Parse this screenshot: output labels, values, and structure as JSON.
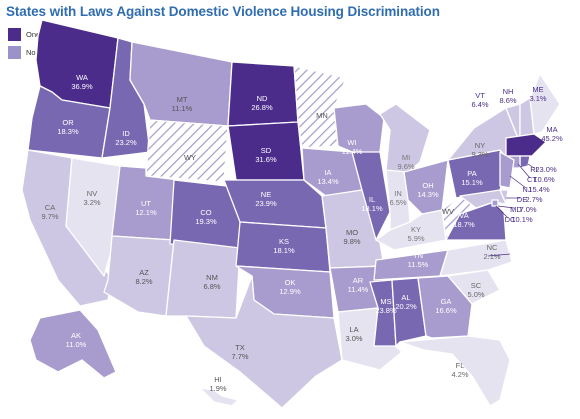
{
  "title": "States with Laws Against Domestic Violence Housing Discrimination",
  "colors": {
    "has_law": "#4b2c8a",
    "no_law": "#9b92c9",
    "very_light": "#e6e3f1",
    "light": "#cdc7e3",
    "mid": "#a79ccd",
    "dark": "#7868b2",
    "border": "#ffffff",
    "hatch": "#a39bc8"
  },
  "legend": [
    {
      "label": "One or more laws",
      "color": "#4b2c8a"
    },
    {
      "label": "No laws",
      "color": "#9b92c9"
    }
  ],
  "states": [
    {
      "id": "WA",
      "name": "WA",
      "value": "36.9%",
      "has_law": true
    },
    {
      "id": "OR",
      "name": "OR",
      "value": "18.3%"
    },
    {
      "id": "CA",
      "name": "CA",
      "value": "9.7%"
    },
    {
      "id": "NV",
      "name": "NV",
      "value": "3.2%"
    },
    {
      "id": "ID",
      "name": "ID",
      "value": "23.2%"
    },
    {
      "id": "MT",
      "name": "MT",
      "value": "11.1%"
    },
    {
      "id": "WY",
      "name": "WY",
      "value": "",
      "hatched": true
    },
    {
      "id": "UT",
      "name": "UT",
      "value": "12.1%"
    },
    {
      "id": "AZ",
      "name": "AZ",
      "value": "8.2%"
    },
    {
      "id": "CO",
      "name": "CO",
      "value": "19.3%"
    },
    {
      "id": "NM",
      "name": "NM",
      "value": "6.8%"
    },
    {
      "id": "ND",
      "name": "ND",
      "value": "26.8%",
      "has_law": true
    },
    {
      "id": "SD",
      "name": "SD",
      "value": "31.6%",
      "has_law": true
    },
    {
      "id": "NE",
      "name": "NE",
      "value": "23.9%"
    },
    {
      "id": "KS",
      "name": "KS",
      "value": "18.1%"
    },
    {
      "id": "OK",
      "name": "OK",
      "value": "12.9%"
    },
    {
      "id": "TX",
      "name": "TX",
      "value": "7.7%"
    },
    {
      "id": "MN",
      "name": "MN",
      "value": "",
      "hatched": true
    },
    {
      "id": "IA",
      "name": "IA",
      "value": "13.4%"
    },
    {
      "id": "MO",
      "name": "MO",
      "value": "9.8%"
    },
    {
      "id": "AR",
      "name": "AR",
      "value": "11.4%"
    },
    {
      "id": "LA",
      "name": "LA",
      "value": "3.0%"
    },
    {
      "id": "WI",
      "name": "WI",
      "value": "11.4%"
    },
    {
      "id": "IL",
      "name": "IL",
      "value": "18.1%"
    },
    {
      "id": "MS",
      "name": "MS",
      "value": "23.8%"
    },
    {
      "id": "MI",
      "name": "MI",
      "value": "9.6%"
    },
    {
      "id": "IN",
      "name": "IN",
      "value": "6.5%"
    },
    {
      "id": "KY",
      "name": "KY",
      "value": "5.9%"
    },
    {
      "id": "TN",
      "name": "TN",
      "value": "11.5%"
    },
    {
      "id": "AL",
      "name": "AL",
      "value": "20.2%"
    },
    {
      "id": "GA",
      "name": "GA",
      "value": "16.6%"
    },
    {
      "id": "FL",
      "name": "FL",
      "value": "4.2%"
    },
    {
      "id": "OH",
      "name": "OH",
      "value": "14.3%"
    },
    {
      "id": "WV",
      "name": "WV",
      "value": "",
      "hatched": true
    },
    {
      "id": "VA",
      "name": "VA",
      "value": "18.7%"
    },
    {
      "id": "NC",
      "name": "NC",
      "value": "2.1%"
    },
    {
      "id": "SC",
      "name": "SC",
      "value": "5.0%"
    },
    {
      "id": "PA",
      "name": "PA",
      "value": "15.1%"
    },
    {
      "id": "NY",
      "name": "NY",
      "value": "9.3%"
    },
    {
      "id": "VT",
      "name": "VT",
      "value": "6.4%"
    },
    {
      "id": "NH",
      "name": "NH",
      "value": "8.6%"
    },
    {
      "id": "ME",
      "name": "ME",
      "value": "3.1%"
    },
    {
      "id": "MA",
      "name": "MA",
      "value": "45.2%",
      "has_law": true
    },
    {
      "id": "RI",
      "name": "RI",
      "value": "23.0%"
    },
    {
      "id": "CT",
      "name": "CT",
      "value": "10.6%"
    },
    {
      "id": "NJ",
      "name": "NJ",
      "value": "15.4%"
    },
    {
      "id": "DE",
      "name": "DE",
      "value": "2.7%"
    },
    {
      "id": "MD",
      "name": "MD",
      "value": "7.0%"
    },
    {
      "id": "DC",
      "name": "DC",
      "value": "10.1%"
    },
    {
      "id": "AK",
      "name": "AK",
      "value": "11.0%"
    },
    {
      "id": "HI",
      "name": "HI",
      "value": "1.9%"
    }
  ]
}
